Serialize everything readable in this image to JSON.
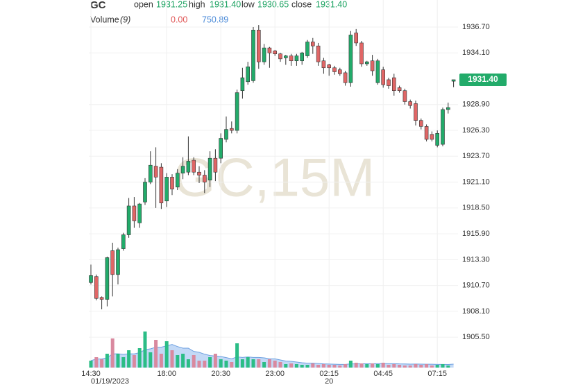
{
  "chart_data": {
    "type": "candlestick",
    "title": "GC",
    "watermark": "GC,15M",
    "ohlc_header": [
      {
        "label": "open",
        "value": "1931.25"
      },
      {
        "label": "high",
        "value": "1931.40"
      },
      {
        "label": "low",
        "value": "1930.65"
      },
      {
        "label": "close",
        "value": "1931.40"
      }
    ],
    "volume_header": {
      "label": "Volume",
      "period": "(9)",
      "value": "0.00",
      "ma": "750.89"
    },
    "categories": [
      "14:30",
      null,
      null,
      null,
      null,
      null,
      null,
      null,
      null,
      null,
      null,
      null,
      null,
      null,
      "18:00",
      null,
      null,
      null,
      null,
      null,
      null,
      null,
      null,
      null,
      "20:30",
      null,
      null,
      null,
      null,
      null,
      null,
      null,
      null,
      null,
      "23:00",
      null,
      null,
      null,
      null,
      null,
      null,
      null,
      null,
      null,
      "02:15",
      null,
      null,
      null,
      null,
      null,
      null,
      null,
      null,
      null,
      "04:45",
      null,
      null,
      null,
      null,
      null,
      null,
      null,
      null,
      null,
      "07:15",
      null,
      null,
      null
    ],
    "date_labels": [
      "01/19/2023",
      null,
      null,
      null,
      null,
      null,
      null,
      null,
      null,
      null,
      null,
      null,
      null,
      null,
      null,
      null,
      null,
      null,
      null,
      null,
      null,
      null,
      null,
      null,
      null,
      null,
      null,
      null,
      null,
      null,
      null,
      null,
      null,
      null,
      null,
      null,
      null,
      null,
      null,
      null,
      null,
      null,
      null,
      null,
      "20",
      null,
      null,
      null,
      null,
      null,
      null,
      null,
      null,
      null,
      null,
      null,
      null,
      null,
      null,
      null,
      null,
      null,
      null,
      null,
      null,
      null,
      null,
      null
    ],
    "open": [
      1911.0,
      1911.6,
      1909.5,
      1909.3,
      1914.2,
      1911.8,
      1914.4,
      1915.8,
      1918.7,
      1917.0,
      1919.1,
      1921.1,
      1922.7,
      1922.6,
      1919.2,
      1921.6,
      1920.6,
      1922.0,
      1922.1,
      1923.3,
      1922.1,
      1921.8,
      1921.3,
      1923.5,
      1923.5,
      1925.4,
      1926.5,
      1926.3,
      1930.3,
      1931.2,
      1931.3,
      1936.4,
      1933.2,
      1934.6,
      1934.3,
      1934.0,
      1933.6,
      1933.8,
      1933.3,
      1933.3,
      1933.8,
      1935.2,
      1934.8,
      1933.3,
      1932.9,
      1932.6,
      1932.4,
      1932.1,
      1931.1,
      1936.1,
      1935.1,
      1933.0,
      1933.3,
      1931.1,
      1932.4,
      1931.4,
      1931.6,
      1930.6,
      1930.3,
      1929.2,
      1929.0,
      1927.3,
      1926.7,
      1925.9,
      1924.8,
      1924.9,
      1928.4,
      1931.25
    ],
    "high": [
      1912.8,
      1911.8,
      1909.6,
      1913.6,
      1915.0,
      1914.5,
      1916.0,
      1919.5,
      1919.6,
      1919.0,
      1921.5,
      1924.2,
      1924.6,
      1923.0,
      1922.0,
      1921.9,
      1922.4,
      1923.6,
      1925.7,
      1923.6,
      1922.7,
      1922.3,
      1924.2,
      1924.4,
      1926.0,
      1927.7,
      1927.2,
      1930.4,
      1932.6,
      1933.2,
      1936.7,
      1936.9,
      1935.0,
      1934.7,
      1934.4,
      1934.1,
      1933.9,
      1934.0,
      1934.0,
      1934.2,
      1935.4,
      1935.6,
      1935.1,
      1933.6,
      1933.0,
      1932.8,
      1932.6,
      1932.3,
      1936.3,
      1936.5,
      1935.3,
      1933.3,
      1933.9,
      1933.5,
      1932.7,
      1931.6,
      1932.0,
      1930.8,
      1930.5,
      1929.4,
      1929.3,
      1927.5,
      1926.9,
      1926.2,
      1926.3,
      1928.6,
      1929.1,
      1931.4
    ],
    "low": [
      1910.8,
      1909.2,
      1908.3,
      1908.6,
      1909.6,
      1910.8,
      1914.2,
      1915.5,
      1916.5,
      1916.5,
      1918.8,
      1920.9,
      1918.5,
      1918.4,
      1918.6,
      1919.8,
      1920.3,
      1921.4,
      1921.8,
      1921.8,
      1921.0,
      1920.0,
      1920.6,
      1921.2,
      1923.0,
      1925.1,
      1926.0,
      1926.0,
      1929.5,
      1930.9,
      1931.1,
      1932.5,
      1932.9,
      1932.6,
      1933.8,
      1933.2,
      1932.9,
      1932.8,
      1932.8,
      1932.9,
      1933.6,
      1934.0,
      1932.8,
      1932.0,
      1931.8,
      1931.9,
      1931.8,
      1930.8,
      1930.7,
      1934.8,
      1932.7,
      1932.8,
      1931.8,
      1930.9,
      1930.6,
      1930.5,
      1929.8,
      1930.1,
      1928.9,
      1928.5,
      1926.8,
      1926.4,
      1925.2,
      1925.2,
      1924.6,
      1924.7,
      1928.0,
      1930.65
    ],
    "close": [
      1911.7,
      1909.4,
      1909.3,
      1913.5,
      1911.8,
      1914.3,
      1915.8,
      1918.7,
      1917.2,
      1918.9,
      1921.1,
      1922.8,
      1921.6,
      1919.0,
      1921.6,
      1920.4,
      1922.0,
      1922.7,
      1923.2,
      1922.1,
      1921.8,
      1921.1,
      1923.5,
      1922.1,
      1925.5,
      1926.4,
      1926.3,
      1930.1,
      1931.6,
      1932.7,
      1936.4,
      1933.2,
      1934.6,
      1934.1,
      1934.0,
      1933.5,
      1933.8,
      1933.3,
      1933.8,
      1934.1,
      1935.2,
      1934.8,
      1933.2,
      1932.6,
      1932.6,
      1932.2,
      1932.0,
      1931.1,
      1935.9,
      1935.1,
      1933.0,
      1933.2,
      1932.3,
      1933.3,
      1930.9,
      1930.8,
      1930.3,
      1930.3,
      1929.2,
      1928.8,
      1927.3,
      1926.7,
      1925.4,
      1925.4,
      1926.0,
      1928.4,
      1928.6,
      1931.4
    ],
    "volume": [
      1500,
      2250,
      1800,
      3000,
      6300,
      3000,
      2250,
      3750,
      2700,
      4200,
      7800,
      3300,
      6000,
      3000,
      5700,
      3750,
      2700,
      3000,
      1800,
      2700,
      1500,
      1500,
      2250,
      3000,
      1800,
      1500,
      1200,
      5250,
      1800,
      2250,
      1800,
      1800,
      1200,
      1800,
      1500,
      1200,
      750,
      900,
      750,
      600,
      600,
      900,
      600,
      750,
      600,
      600,
      450,
      750,
      1500,
      1050,
      900,
      750,
      900,
      750,
      1050,
      600,
      750,
      600,
      450,
      450,
      750,
      600,
      750,
      450,
      600,
      750,
      450,
      0
    ],
    "volume_ma": [
      1500,
      1850,
      1850,
      2140,
      2970,
      2980,
      2870,
      2980,
      2960,
      3220,
      3880,
      4050,
      4400,
      4400,
      4700,
      5000,
      4550,
      4200,
      4200,
      3500,
      3300,
      2900,
      2600,
      2500,
      2400,
      2150,
      1900,
      2300,
      2200,
      2300,
      2200,
      2200,
      2100,
      1900,
      1900,
      1650,
      1400,
      1350,
      1200,
      1050,
      950,
      950,
      880,
      800,
      770,
      730,
      700,
      700,
      800,
      800,
      830,
      830,
      850,
      850,
      880,
      850,
      850,
      800,
      780,
      750,
      760,
      750,
      740,
      740,
      700,
      700,
      680,
      750.89
    ],
    "ylim": [
      1902.44,
      1939.42
    ],
    "yticks": [
      {
        "value": 1936.7,
        "label": "1936.70"
      },
      {
        "value": 1934.1,
        "label": "1934.10"
      },
      {
        "value": 1928.9,
        "label": "1928.90"
      },
      {
        "value": 1926.3,
        "label": "1926.30"
      },
      {
        "value": 1923.7,
        "label": "1923.70"
      },
      {
        "value": 1921.1,
        "label": "1921.10"
      },
      {
        "value": 1918.5,
        "label": "1918.50"
      },
      {
        "value": 1915.9,
        "label": "1915.90"
      },
      {
        "value": 1913.3,
        "label": "1913.30"
      },
      {
        "value": 1910.7,
        "label": "1910.70"
      },
      {
        "value": 1908.1,
        "label": "1908.10"
      },
      {
        "value": 1905.5,
        "label": "1905.50"
      }
    ],
    "y2lim": [
      0,
      12000
    ],
    "last_price": {
      "value": 1931.4,
      "label": "1931.40"
    },
    "grid": true,
    "up_color": "#22ab6a",
    "down_color": "#e06666",
    "volume_up_color": "#2bbd86",
    "volume_down_color": "#d9899f",
    "ma_color": "#6c9fe0",
    "ma_fill": "#a9c9f2",
    "header_value_color": "#1aa260",
    "volume_value_color": "#e05555",
    "ma_value_color": "#4a8ad8"
  }
}
